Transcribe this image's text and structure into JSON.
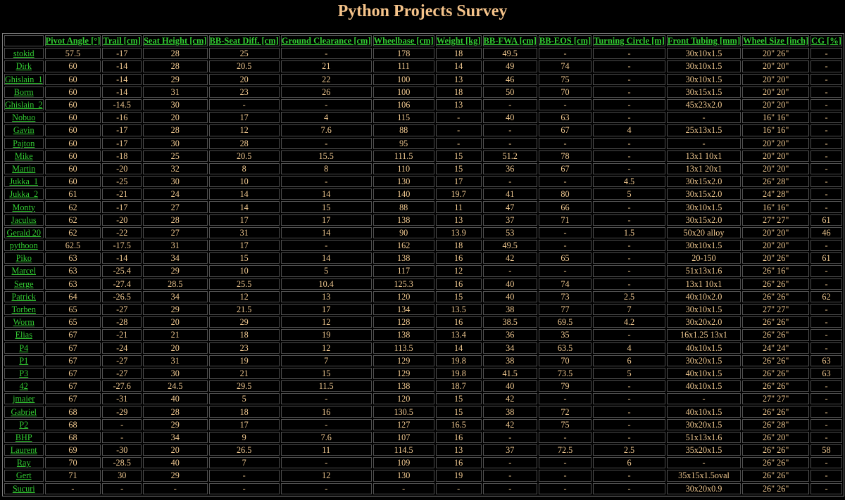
{
  "page_title": "Python Projects Survey",
  "colors": {
    "background": "#000000",
    "title": "#f5c38a",
    "link": "#33cc33",
    "cell_text": "#f0c890",
    "border": "#808080"
  },
  "table": {
    "headers": [
      "",
      "Pivot Angle [°]",
      "Trail [cm]",
      "Seat Height [cm]",
      "BB-Seat Diff. [cm]",
      "Ground Clearance [cm]",
      "Wheelbase [cm]",
      "Weight [kg]",
      "BB-FWA [cm]",
      "BB-EOS [cm]",
      "Turning Circle [m]",
      "Front Tubing [mm]",
      "Wheel Size [inch]",
      "CG [%]"
    ],
    "rows": [
      [
        "stokid",
        "57.5",
        "-17",
        "28",
        "25",
        "-",
        "178",
        "18",
        "49.5",
        "-",
        "-",
        "30x10x1.5",
        "20\" 26\"",
        "-"
      ],
      [
        "Dirk",
        "60",
        "-14",
        "28",
        "20.5",
        "21",
        "111",
        "14",
        "49",
        "74",
        "-",
        "30x10x1.5",
        "20\" 20\"",
        "-"
      ],
      [
        "Ghislain_1",
        "60",
        "-14",
        "29",
        "20",
        "22",
        "100",
        "13",
        "46",
        "75",
        "-",
        "30x10x1.5",
        "20\" 20\"",
        "-"
      ],
      [
        "Borm",
        "60",
        "-14",
        "31",
        "23",
        "26",
        "100",
        "18",
        "50",
        "70",
        "-",
        "30x15x1.5",
        "20\" 20\"",
        "-"
      ],
      [
        "Ghislain_2",
        "60",
        "-14.5",
        "30",
        "-",
        "-",
        "106",
        "13",
        "-",
        "-",
        "-",
        "45x23x2.0",
        "20\" 20\"",
        "-"
      ],
      [
        "Nobuo",
        "60",
        "-16",
        "20",
        "17",
        "4",
        "115",
        "-",
        "40",
        "63",
        "-",
        "-",
        "16\" 16\"",
        "-"
      ],
      [
        "Gavin",
        "60",
        "-17",
        "28",
        "12",
        "7.6",
        "88",
        "-",
        "-",
        "67",
        "4",
        "25x13x1.5",
        "16\" 16\"",
        "-"
      ],
      [
        "Pajton",
        "60",
        "-17",
        "30",
        "28",
        "-",
        "95",
        "-",
        "-",
        "-",
        "-",
        "-",
        "20\" 20\"",
        "-"
      ],
      [
        "Mike",
        "60",
        "-18",
        "25",
        "20.5",
        "15.5",
        "111.5",
        "15",
        "51.2",
        "78",
        "-",
        "13x1 10x1",
        "20\" 20\"",
        "-"
      ],
      [
        "Martin",
        "60",
        "-20",
        "32",
        "8",
        "8",
        "110",
        "15",
        "36",
        "67",
        "-",
        "13x1 20x1",
        "20\" 20\"",
        "-"
      ],
      [
        "Jukka_1",
        "60",
        "-25",
        "30",
        "10",
        "-",
        "130",
        "17",
        "-",
        "-",
        "4.5",
        "30x15x2.0",
        "26\" 28\"",
        "-"
      ],
      [
        "Jukka_2",
        "61",
        "-21",
        "24",
        "14",
        "14",
        "140",
        "19.7",
        "41",
        "80",
        "5",
        "30x15x2.0",
        "24\" 28\"",
        "-"
      ],
      [
        "Monty",
        "62",
        "-17",
        "27",
        "14",
        "15",
        "88",
        "11",
        "47",
        "66",
        "-",
        "30x10x1.5",
        "16\" 16\"",
        "-"
      ],
      [
        "Jaculus",
        "62",
        "-20",
        "28",
        "17",
        "17",
        "138",
        "13",
        "37",
        "71",
        "-",
        "30x15x2.0",
        "27\" 27\"",
        "61"
      ],
      [
        "Gerald 20",
        "62",
        "-22",
        "27",
        "31",
        "14",
        "90",
        "13.9",
        "53",
        "-",
        "1.5",
        "50x20 alloy",
        "20\" 20\"",
        "46"
      ],
      [
        "pythoon",
        "62.5",
        "-17.5",
        "31",
        "17",
        "-",
        "162",
        "18",
        "49.5",
        "-",
        "-",
        "30x10x1.5",
        "20\" 20\"",
        "-"
      ],
      [
        "Piko",
        "63",
        "-14",
        "34",
        "15",
        "14",
        "138",
        "16",
        "42",
        "65",
        "-",
        "20-150",
        "20\" 26\"",
        "61"
      ],
      [
        "Marcel",
        "63",
        "-25.4",
        "29",
        "10",
        "5",
        "117",
        "12",
        "-",
        "-",
        "-",
        "51x13x1.6",
        "26\" 16\"",
        "-"
      ],
      [
        "Serge",
        "63",
        "-27.4",
        "28.5",
        "25.5",
        "10.4",
        "125.3",
        "16",
        "40",
        "74",
        "-",
        "13x1 10x1",
        "26\" 26\"",
        "-"
      ],
      [
        "Patrick",
        "64",
        "-26.5",
        "34",
        "12",
        "13",
        "120",
        "15",
        "40",
        "73",
        "2.5",
        "40x10x2.0",
        "26\" 26\"",
        "62"
      ],
      [
        "Torben",
        "65",
        "-27",
        "29",
        "21.5",
        "17",
        "134",
        "13.5",
        "38",
        "77",
        "7",
        "30x10x1.5",
        "27\" 27\"",
        "-"
      ],
      [
        "Worm",
        "65",
        "-28",
        "20",
        "29",
        "12",
        "128",
        "16",
        "38.5",
        "69.5",
        "4.2",
        "30x20x2.0",
        "26\" 26\"",
        "-"
      ],
      [
        "Elias",
        "67",
        "-21",
        "21",
        "18",
        "19",
        "138",
        "13.4",
        "36",
        "35",
        "-",
        "16x1.25 13x1",
        "26\" 26\"",
        "-"
      ],
      [
        "P4",
        "67",
        "-24",
        "20",
        "23",
        "12",
        "113.5",
        "14",
        "34",
        "63.5",
        "4",
        "40x10x1.5",
        "24\" 24\"",
        "-"
      ],
      [
        "P1",
        "67",
        "-27",
        "31",
        "19",
        "7",
        "129",
        "19.8",
        "38",
        "70",
        "6",
        "30x20x1.5",
        "26\" 26\"",
        "63"
      ],
      [
        "P3",
        "67",
        "-27",
        "30",
        "21",
        "15",
        "129",
        "19.8",
        "41.5",
        "73.5",
        "5",
        "40x10x1.5",
        "26\" 26\"",
        "63"
      ],
      [
        "42",
        "67",
        "-27.6",
        "24.5",
        "29.5",
        "11.5",
        "138",
        "18.7",
        "40",
        "79",
        "-",
        "40x10x1.5",
        "26\" 26\"",
        "-"
      ],
      [
        "jmaier",
        "67",
        "-31",
        "40",
        "5",
        "-",
        "120",
        "15",
        "42",
        "-",
        "-",
        "-",
        "27\" 27\"",
        "-"
      ],
      [
        "Gabriel",
        "68",
        "-29",
        "28",
        "18",
        "16",
        "130.5",
        "15",
        "38",
        "72",
        "-",
        "40x10x1.5",
        "26\" 26\"",
        "-"
      ],
      [
        "P2",
        "68",
        "-",
        "29",
        "17",
        "-",
        "127",
        "16.5",
        "42",
        "75",
        "-",
        "30x20x1.5",
        "26\" 28\"",
        "-"
      ],
      [
        "BHP",
        "68",
        "-",
        "34",
        "9",
        "7.6",
        "107",
        "16",
        "-",
        "-",
        "-",
        "51x13x1.6",
        "26\" 20\"",
        "-"
      ],
      [
        "Laurent",
        "69",
        "-30",
        "20",
        "26.5",
        "11",
        "114.5",
        "13",
        "37",
        "72.5",
        "2.5",
        "35x20x1.5",
        "26\" 26\"",
        "58"
      ],
      [
        "Ray",
        "70",
        "-28.5",
        "40",
        "7",
        "-",
        "109",
        "16",
        "-",
        "-",
        "6",
        "-",
        "26\" 26\"",
        "-"
      ],
      [
        "Gert",
        "71",
        "30",
        "29",
        "-",
        "12",
        "130",
        "19",
        "-",
        "-",
        "-",
        "35x15x1.5oval",
        "26\" 26\"",
        "-"
      ],
      [
        "Sucuri",
        "-",
        "-",
        "-",
        "-",
        "-",
        "-",
        "-",
        "-",
        "-",
        "-",
        "30x20x0.9",
        "26\" 26\"",
        "-"
      ]
    ]
  }
}
